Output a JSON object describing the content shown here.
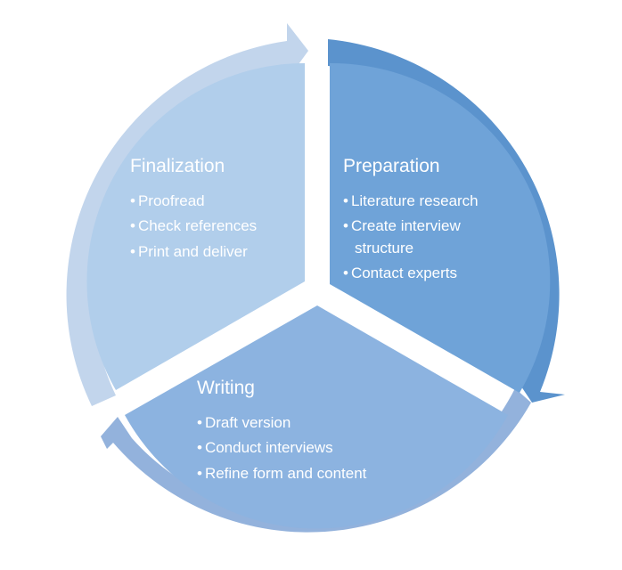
{
  "cycle": {
    "segments": [
      {
        "id": "preparation",
        "title": "Preparation",
        "color": "#6FA3D8",
        "arrow_color": "#5B93CD",
        "items": [
          "Literature research",
          "Create interview",
          "structure",
          "Contact experts"
        ]
      },
      {
        "id": "writing",
        "title": "Writing",
        "color": "#8CB3E0",
        "arrow_color": "#93B2DC",
        "items": [
          "Draft version",
          "Conduct interviews",
          "Refine form and content"
        ]
      },
      {
        "id": "finalization",
        "title": "Finalization",
        "color": "#B1CEEB",
        "arrow_color": "#C2D5EC",
        "items": [
          "Proofread",
          "Check references",
          "Print and deliver"
        ]
      }
    ],
    "bullet_char": "•"
  }
}
